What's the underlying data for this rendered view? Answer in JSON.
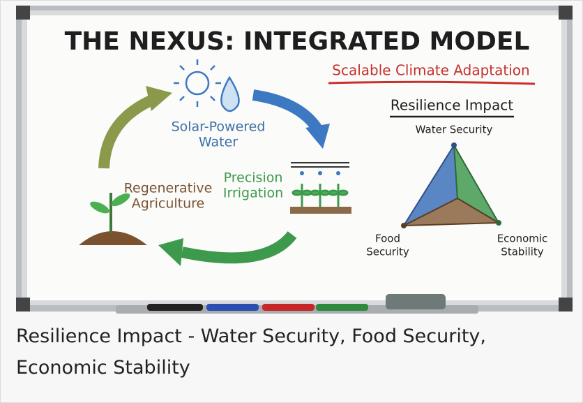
{
  "whiteboard": {
    "title": "THE NEXUS: INTEGRATED MODEL",
    "subtitle": "Scalable Climate Adaptation",
    "cycle": [
      {
        "lines": [
          "Solar-Powered",
          "Water"
        ]
      },
      {
        "lines": [
          "Precision",
          "Irrigation"
        ]
      },
      {
        "lines": [
          "Regenerative",
          "Agriculture"
        ]
      }
    ],
    "impact": {
      "title": "Resilience Impact",
      "axes": [
        {
          "lines": [
            "Water Security"
          ]
        },
        {
          "lines": [
            "Food",
            "Security"
          ]
        },
        {
          "lines": [
            "Economic",
            "Stability"
          ]
        }
      ]
    }
  },
  "caption": "Resilience Impact - Water Security, Food Security, Economic Stability"
}
